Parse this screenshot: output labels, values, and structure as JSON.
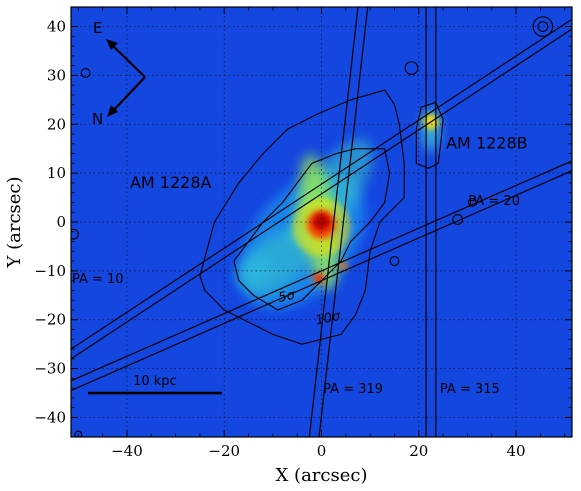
{
  "chart_data": {
    "type": "heatmap",
    "title": "",
    "xlabel": "X (arcsec)",
    "ylabel": "Y (arcsec)",
    "xlim": [
      -51.5,
      51.5
    ],
    "ylim": [
      -44,
      44
    ],
    "xticks": [
      -40,
      -20,
      0,
      20,
      40
    ],
    "yticks": [
      -40,
      -30,
      -20,
      -10,
      0,
      10,
      20,
      30,
      40
    ],
    "grid": true,
    "colors": {
      "background": "#1446e0",
      "frame": "#000000",
      "line": "#000000"
    },
    "galaxy_labels": [
      {
        "text": "AM 1228A",
        "x": -31,
        "y": 7
      },
      {
        "text": "AM 1228B",
        "x": 34,
        "y": 15
      }
    ],
    "slit_labels": [
      {
        "text": "PA = 10",
        "x": -46,
        "y": -12.5
      },
      {
        "text": "PA = 20",
        "x": 35.5,
        "y": 3.5
      },
      {
        "text": "PA = 319",
        "x": 6.5,
        "y": -35
      },
      {
        "text": "PA = 315",
        "x": 30.5,
        "y": -35
      }
    ],
    "contour_labels": [
      {
        "text": "5σ",
        "x": -7,
        "y": -16
      },
      {
        "text": "10σ",
        "x": 1.5,
        "y": -20.5
      }
    ],
    "compass": {
      "east": "E",
      "north": "N"
    },
    "scale_bar": {
      "label": "10 kpc",
      "x1": -48,
      "x2": -20.5,
      "y": -35
    },
    "slits": [
      {
        "pa": "PA = 10",
        "lines": [
          [
            [
              -2.5,
              -44
            ],
            [
              7.5,
              44
            ]
          ],
          [
            [
              -0.5,
              -44
            ],
            [
              9.5,
              44
            ]
          ]
        ]
      },
      {
        "pa": "PA = 20",
        "lines": [
          [
            [
              -51.5,
              -32.5
            ],
            [
              51.5,
              12.5
            ]
          ],
          [
            [
              -51.5,
              -34.5
            ],
            [
              51.5,
              10.5
            ]
          ]
        ]
      },
      {
        "pa": "PA = 319",
        "lines": [
          [
            [
              -51.5,
              -26
            ],
            [
              51.5,
              41.5
            ]
          ],
          [
            [
              -51.5,
              -28
            ],
            [
              51.5,
              39.5
            ]
          ]
        ]
      },
      {
        "pa": "PA = 315",
        "lines": [
          [
            [
              21.5,
              -44
            ],
            [
              21.5,
              44
            ]
          ],
          [
            [
              23.5,
              -44
            ],
            [
              23.5,
              44
            ]
          ]
        ]
      }
    ],
    "contours": [
      {
        "level": "5σ",
        "points": [
          [
            -18,
            -8
          ],
          [
            -12,
            0
          ],
          [
            -8,
            4
          ],
          [
            -5,
            8
          ],
          [
            -2,
            12
          ],
          [
            3,
            14
          ],
          [
            7,
            15
          ],
          [
            13,
            15
          ],
          [
            14,
            10
          ],
          [
            13,
            4
          ],
          [
            10,
            0
          ],
          [
            6,
            -4
          ],
          [
            4,
            -8
          ],
          [
            0,
            -12
          ],
          [
            -4,
            -16
          ],
          [
            -9,
            -18
          ],
          [
            -14,
            -15
          ],
          [
            -17,
            -12
          ]
        ]
      },
      {
        "level": "10σ",
        "points": [
          [
            -25,
            -11
          ],
          [
            -22,
            0
          ],
          [
            -17,
            8
          ],
          [
            -12,
            14
          ],
          [
            -7,
            19
          ],
          [
            -1,
            22
          ],
          [
            6,
            25
          ],
          [
            13,
            27
          ],
          [
            15,
            24
          ],
          [
            16,
            20
          ],
          [
            17,
            12
          ],
          [
            17,
            5
          ],
          [
            12,
            0
          ],
          [
            10,
            -6
          ],
          [
            9,
            -14
          ],
          [
            7,
            -19
          ],
          [
            4,
            -23
          ],
          [
            -4,
            -25
          ],
          [
            -10,
            -23
          ],
          [
            -14,
            -21
          ],
          [
            -20,
            -18
          ],
          [
            -24,
            -14
          ]
        ]
      },
      {
        "level": "B",
        "points": [
          [
            19.5,
            12
          ],
          [
            19.5,
            19
          ],
          [
            20.5,
            23.5
          ],
          [
            23.5,
            24.5
          ],
          [
            25,
            21
          ],
          [
            24.5,
            16
          ],
          [
            24,
            12
          ],
          [
            22,
            11
          ]
        ]
      }
    ],
    "point_sources": [
      {
        "x": 45.5,
        "y": 40,
        "r": 2
      },
      {
        "x": 45.5,
        "y": 40,
        "r": 1
      },
      {
        "x": -48.5,
        "y": 30.5,
        "r": 0.9
      },
      {
        "x": 18.5,
        "y": 31.5,
        "r": 1.3
      },
      {
        "x": 15,
        "y": -8,
        "r": 0.9
      },
      {
        "x": 28,
        "y": 0.5,
        "r": 1
      },
      {
        "x": 31,
        "y": 4,
        "r": 0.8
      },
      {
        "x": -51,
        "y": -2.5,
        "r": 1
      },
      {
        "x": -50,
        "y": -43.5,
        "r": 0.7
      }
    ],
    "emission": [
      {
        "x": 0,
        "y": -1,
        "r": 6,
        "color": "#f2e500",
        "opacity": 0.55
      },
      {
        "x": 0,
        "y": -0.5,
        "r": 3,
        "color": "#ff3b00",
        "opacity": 0.9
      },
      {
        "x": 0,
        "y": 0,
        "r": 1.8,
        "color": "#b80000",
        "opacity": 1
      },
      {
        "x": 22.5,
        "y": 20.5,
        "r": 1.6,
        "color": "#ffe000",
        "opacity": 0.9
      },
      {
        "x": -0.5,
        "y": -11.5,
        "r": 1.2,
        "color": "#ff2a00",
        "opacity": 0.9
      },
      {
        "x": 4.5,
        "y": -9,
        "r": 0.9,
        "color": "#ff7a00",
        "opacity": 0.8
      }
    ],
    "diffuse": [
      {
        "cx": -4,
        "cy": -4,
        "rx": 16,
        "ry": 10,
        "angle": -50,
        "color": "#1a9cf0",
        "opacity": 0.7
      },
      {
        "cx": 2,
        "cy": 6,
        "rx": 13,
        "ry": 5,
        "angle": -55,
        "color": "#3ad0c8",
        "opacity": 0.55
      },
      {
        "cx": -9,
        "cy": -8,
        "rx": 9,
        "ry": 5,
        "angle": -40,
        "color": "#40d6c0",
        "opacity": 0.45
      },
      {
        "cx": -0.5,
        "cy": 0,
        "rx": 3.5,
        "ry": 14,
        "angle": -8,
        "color": "#9ef04a",
        "opacity": 0.75
      },
      {
        "cx": -14,
        "cy": -10,
        "rx": 4,
        "ry": 3,
        "angle": -30,
        "color": "#2ac0e0",
        "opacity": 0.5
      },
      {
        "cx": 22.5,
        "cy": 19,
        "rx": 1.8,
        "ry": 4.5,
        "angle": 0,
        "color": "#3cc8d8",
        "opacity": 0.85
      }
    ]
  }
}
